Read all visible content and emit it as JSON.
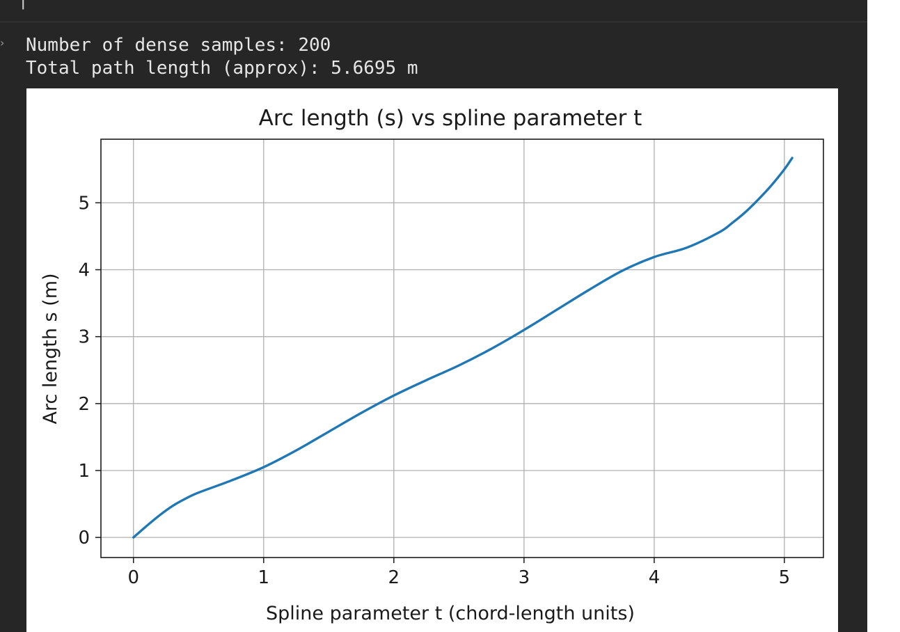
{
  "output": {
    "lines": [
      "Number of dense samples: 200",
      "Total path length (approx): 5.6695 m"
    ]
  },
  "chart_data": {
    "type": "line",
    "title": "Arc length (s) vs spline parameter t",
    "xlabel": "Spline parameter t (chord-length units)",
    "ylabel": "Arc length s (m)",
    "xlim": [
      -0.25,
      5.3
    ],
    "ylim": [
      -0.3,
      5.95
    ],
    "xticks": [
      0,
      1,
      2,
      3,
      4,
      5
    ],
    "yticks": [
      0,
      1,
      2,
      3,
      4,
      5
    ],
    "grid": true,
    "series": [
      {
        "color": "#1f77b4",
        "x": [
          0,
          0.1,
          0.2,
          0.3,
          0.4,
          0.5,
          0.75,
          1.0,
          1.25,
          1.5,
          1.75,
          2.0,
          2.25,
          2.5,
          2.75,
          3.0,
          3.25,
          3.5,
          3.75,
          4.0,
          4.25,
          4.5,
          4.6,
          4.7,
          4.8,
          4.9,
          5.0,
          5.06
        ],
        "y": [
          0,
          0.17,
          0.33,
          0.47,
          0.58,
          0.67,
          0.85,
          1.05,
          1.3,
          1.58,
          1.86,
          2.12,
          2.35,
          2.57,
          2.82,
          3.1,
          3.4,
          3.7,
          3.98,
          4.19,
          4.33,
          4.56,
          4.7,
          4.86,
          5.05,
          5.26,
          5.5,
          5.67
        ]
      }
    ]
  }
}
